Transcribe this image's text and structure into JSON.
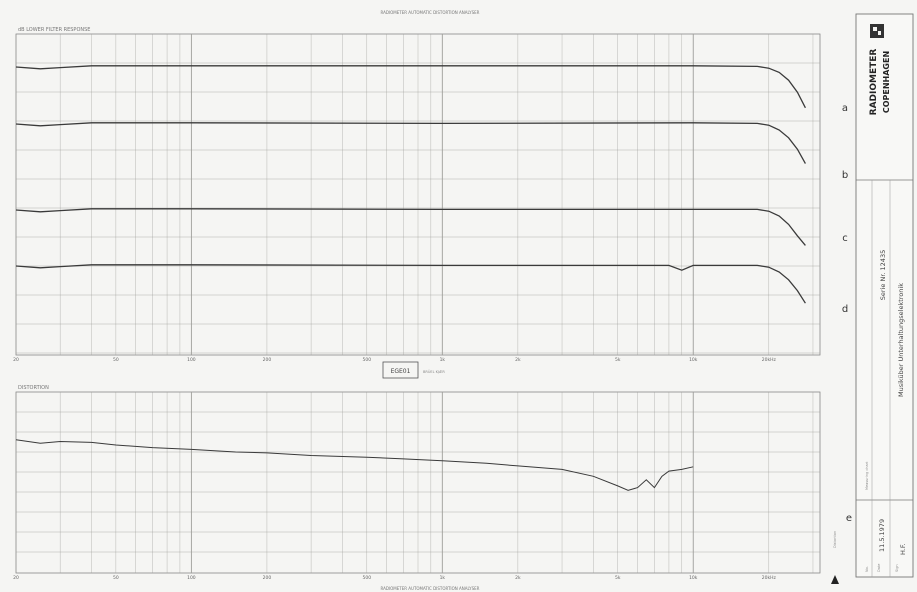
{
  "sheet": {
    "top_title": "RADIOMETER AUTOMATIC DISTORTION ANALYSER",
    "bottom_title": "RADIOMETER AUTOMATIC DISTORTION ANALYSER",
    "logo_line1": "RADIOMETER",
    "logo_line2": "COPENHAGEN",
    "serial_no": "Serie Nr. 12435",
    "workshop": "Musiküber Unterhaltungselektronik",
    "date": "11.5.1979",
    "measuring_chart_label": "Measuring chart",
    "no_label": "No.",
    "date_label": "Date",
    "sign_label": "Sign",
    "sign_value": "H.F.",
    "center_stamp": "EGE01",
    "center_stamp_caption": "BRÜEL KJÆR",
    "colors": {
      "paper": "#f5f5f3",
      "grid": "#9e9e9a",
      "trace": "#3a3a3a"
    }
  },
  "chart_data": [
    {
      "type": "line",
      "title": "dB LOWER FILTER RESPONSE",
      "xlabel": "Hz",
      "x_scale": "log",
      "xlim": [
        20,
        32000
      ],
      "x_ticks": [
        "20",
        "50",
        "100",
        "200",
        "500",
        "1k",
        "2k",
        "5k",
        "10k",
        "20kHz"
      ],
      "grid": true,
      "series": [
        {
          "name": "a",
          "x": [
            20,
            25,
            30,
            40,
            50,
            100,
            1000,
            10000,
            18000,
            20000,
            22000,
            24000,
            26000,
            28000
          ],
          "y": [
            0.0,
            -0.3,
            -0.1,
            0.2,
            0.2,
            0.2,
            0.2,
            0.2,
            0.1,
            -0.2,
            -0.9,
            -2.2,
            -4.2,
            -6.8
          ]
        },
        {
          "name": "b",
          "x": [
            20,
            25,
            30,
            40,
            50,
            100,
            1000,
            10000,
            18000,
            20000,
            22000,
            24000,
            26000,
            28000
          ],
          "y": [
            0.0,
            -0.3,
            -0.1,
            0.2,
            0.2,
            0.2,
            0.1,
            0.2,
            0.1,
            -0.2,
            -1.0,
            -2.3,
            -4.2,
            -6.6
          ]
        },
        {
          "name": "c",
          "x": [
            20,
            25,
            30,
            40,
            50,
            100,
            1000,
            10000,
            18000,
            20000,
            22000,
            24000,
            26000,
            28000
          ],
          "y": [
            0.0,
            -0.3,
            -0.1,
            0.2,
            0.2,
            0.2,
            0.1,
            0.1,
            0.1,
            -0.2,
            -1.0,
            -2.4,
            -4.3,
            -5.9
          ]
        },
        {
          "name": "d",
          "x": [
            20,
            25,
            30,
            40,
            50,
            100,
            1000,
            8000,
            9000,
            10000,
            18000,
            20000,
            22000,
            24000,
            26000,
            28000
          ],
          "y": [
            0.0,
            -0.3,
            -0.1,
            0.2,
            0.2,
            0.2,
            0.1,
            0.1,
            -0.7,
            0.1,
            0.1,
            -0.2,
            -1.0,
            -2.3,
            -4.1,
            -6.2
          ]
        }
      ]
    },
    {
      "type": "line",
      "title": "DISTORTION",
      "xlabel": "Hz",
      "x_scale": "log",
      "xlim": [
        20,
        32000
      ],
      "x_ticks": [
        "20",
        "50",
        "100",
        "200",
        "500",
        "1k",
        "2k",
        "5k",
        "10k",
        "20kHz"
      ],
      "ylabel": "Distortion",
      "grid": true,
      "series": [
        {
          "name": "e",
          "x": [
            20,
            25,
            30,
            40,
            50,
            70,
            100,
            150,
            200,
            300,
            500,
            700,
            1000,
            1500,
            2000,
            3000,
            4000,
            5000,
            5500,
            6000,
            6500,
            7000,
            7500,
            8000,
            9000,
            10000
          ],
          "y": [
            6.0,
            5.6,
            5.8,
            5.7,
            5.4,
            5.1,
            4.9,
            4.6,
            4.5,
            4.2,
            4.0,
            3.8,
            3.6,
            3.3,
            3.0,
            2.6,
            1.8,
            0.7,
            0.2,
            0.5,
            1.4,
            0.5,
            1.8,
            2.4,
            2.6,
            2.9
          ]
        }
      ]
    }
  ]
}
